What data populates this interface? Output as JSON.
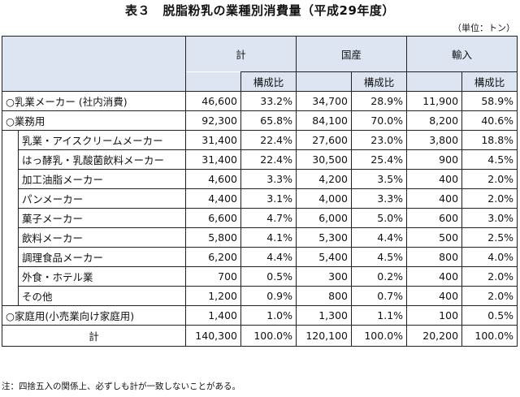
{
  "title": "表３　脱脂粉乳の業種別消費量（平成29年度）",
  "unit": "（単位：トン）",
  "header": {
    "total": "計",
    "domestic": "国産",
    "import": "輸入",
    "ratio": "構成比"
  },
  "rows": [
    {
      "label": "○乳業メーカー (社内消費)",
      "total": "46,600",
      "total_ratio": "33.2%",
      "dom": "34,700",
      "dom_ratio": "28.9%",
      "imp": "11,900",
      "imp_ratio": "58.9%"
    },
    {
      "label": "○業務用",
      "total": "92,300",
      "total_ratio": "65.8%",
      "dom": "84,100",
      "dom_ratio": "70.0%",
      "imp": "8,200",
      "imp_ratio": "40.6%"
    }
  ],
  "sub_rows": [
    {
      "label": "乳業・アイスクリームメーカー",
      "total": "31,400",
      "total_ratio": "22.4%",
      "dom": "27,600",
      "dom_ratio": "23.0%",
      "imp": "3,800",
      "imp_ratio": "18.8%"
    },
    {
      "label": "はっ酵乳・乳酸菌飲料メーカー",
      "total": "31,400",
      "total_ratio": "22.4%",
      "dom": "30,500",
      "dom_ratio": "25.4%",
      "imp": "900",
      "imp_ratio": "4.5%"
    },
    {
      "label": "加工油脂メーカー",
      "total": "4,600",
      "total_ratio": "3.3%",
      "dom": "4,200",
      "dom_ratio": "3.5%",
      "imp": "400",
      "imp_ratio": "2.0%"
    },
    {
      "label": "パンメーカー",
      "total": "4,400",
      "total_ratio": "3.1%",
      "dom": "4,000",
      "dom_ratio": "3.3%",
      "imp": "400",
      "imp_ratio": "2.0%"
    },
    {
      "label": "菓子メーカー",
      "total": "6,600",
      "total_ratio": "4.7%",
      "dom": "6,000",
      "dom_ratio": "5.0%",
      "imp": "600",
      "imp_ratio": "3.0%"
    },
    {
      "label": "飲料メーカー",
      "total": "5,800",
      "total_ratio": "4.1%",
      "dom": "5,300",
      "dom_ratio": "4.4%",
      "imp": "500",
      "imp_ratio": "2.5%"
    },
    {
      "label": "調理食品メーカー",
      "total": "6,200",
      "total_ratio": "4.4%",
      "dom": "5,400",
      "dom_ratio": "4.5%",
      "imp": "800",
      "imp_ratio": "4.0%"
    },
    {
      "label": "外食・ホテル業",
      "total": "700",
      "total_ratio": "0.5%",
      "dom": "300",
      "dom_ratio": "0.2%",
      "imp": "400",
      "imp_ratio": "2.0%"
    },
    {
      "label": "その他",
      "total": "1,200",
      "total_ratio": "0.9%",
      "dom": "800",
      "dom_ratio": "0.7%",
      "imp": "400",
      "imp_ratio": "2.0%"
    }
  ],
  "household": {
    "label": "○家庭用(小売業向け家庭用)",
    "total": "1,400",
    "total_ratio": "1.0%",
    "dom": "1,300",
    "dom_ratio": "1.1%",
    "imp": "100",
    "imp_ratio": "0.5%"
  },
  "grand_total": {
    "label": "計",
    "total": "140,300",
    "total_ratio": "100.0%",
    "dom": "120,100",
    "dom_ratio": "100.0%",
    "imp": "20,200",
    "imp_ratio": "100.0%"
  },
  "note": "注：四捨五入の関係上、必ずしも計が一致しないことがある。",
  "colors": {
    "header_shade": "#dde5f2",
    "border": "#222222"
  }
}
